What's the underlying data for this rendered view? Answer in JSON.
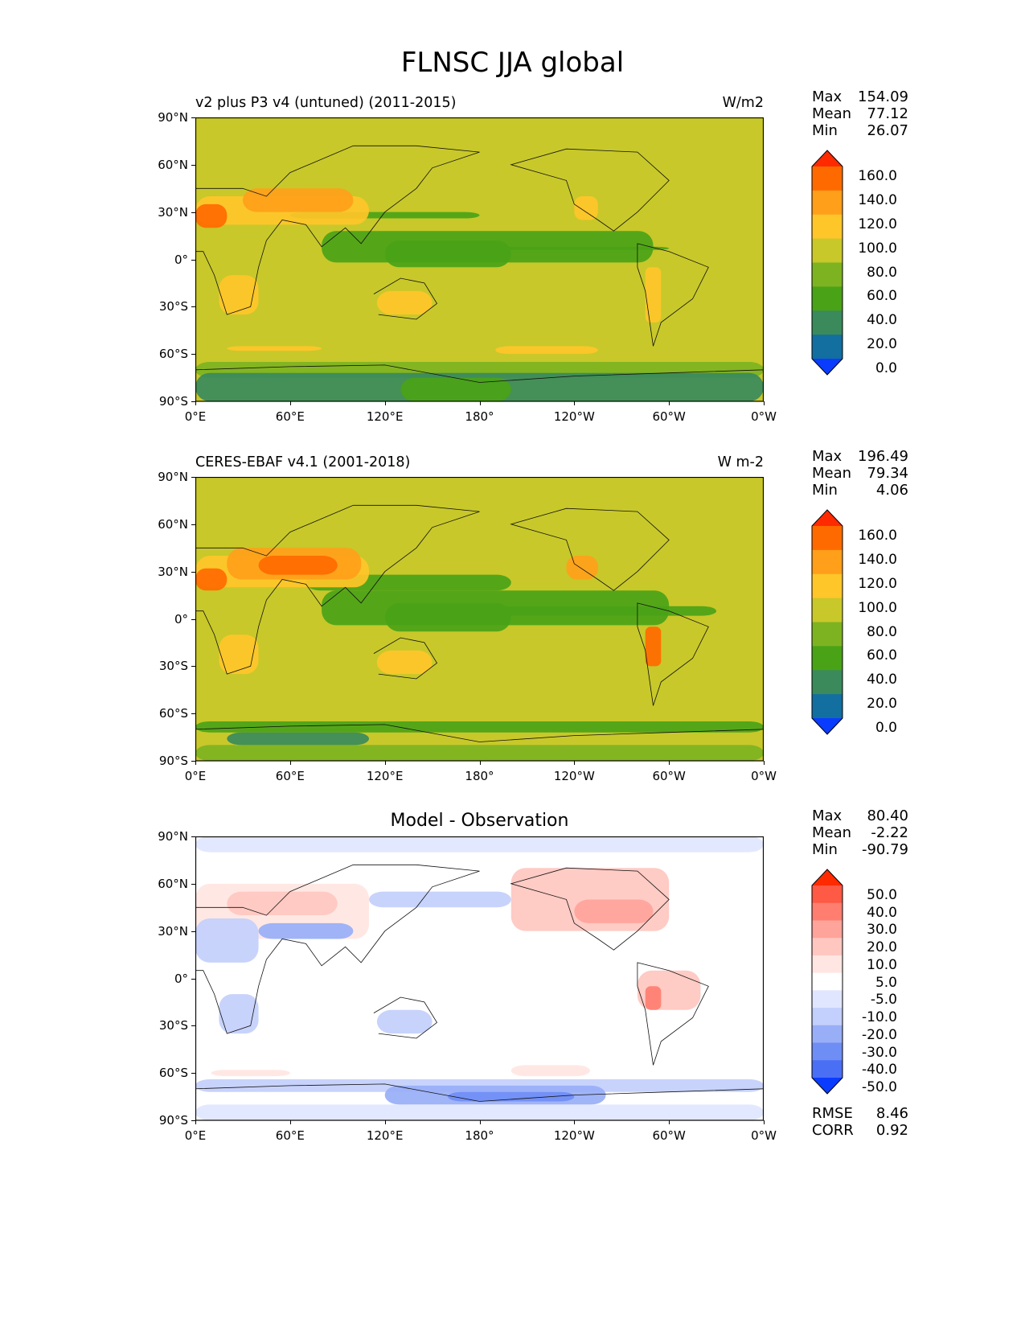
{
  "title": "FLNSC JJA global",
  "lat_ticks": [
    "90°N",
    "60°N",
    "30°N",
    "0°",
    "30°S",
    "60°S",
    "90°S"
  ],
  "lon_ticks": [
    "0°E",
    "60°E",
    "120°E",
    "180°",
    "120°W",
    "60°W",
    "0°W"
  ],
  "stat_labels": {
    "max": "Max",
    "mean": "Mean",
    "min": "Min",
    "rmse": "RMSE",
    "corr": "CORR"
  },
  "panels": [
    {
      "id": "model",
      "left_title": "v2 plus P3 v4 (untuned) (2011-2015)",
      "center_title": "",
      "units": "W/m2",
      "stats": {
        "max": "154.09",
        "mean": "77.12",
        "min": "26.07"
      },
      "colorbar": {
        "levels": [
          "160.0",
          "140.0",
          "120.0",
          "100.0",
          "80.0",
          "60.0",
          "40.0",
          "20.0",
          "0.0"
        ],
        "colors": [
          "#ff2a00",
          "#ff6a00",
          "#ff9f1a",
          "#ffc629",
          "#c8c82a",
          "#7db321",
          "#4aa317",
          "#3a8a5c",
          "#126fa0",
          "#0a3cff"
        ]
      }
    },
    {
      "id": "obs",
      "left_title": "CERES-EBAF v4.1 (2001-2018)",
      "center_title": "",
      "units": "W m-2",
      "stats": {
        "max": "196.49",
        "mean": "79.34",
        "min": "4.06"
      },
      "colorbar": {
        "levels": [
          "160.0",
          "140.0",
          "120.0",
          "100.0",
          "80.0",
          "60.0",
          "40.0",
          "20.0",
          "0.0"
        ],
        "colors": [
          "#ff2a00",
          "#ff6a00",
          "#ff9f1a",
          "#ffc629",
          "#c8c82a",
          "#7db321",
          "#4aa317",
          "#3a8a5c",
          "#126fa0",
          "#0a3cff"
        ]
      }
    },
    {
      "id": "diff",
      "left_title": "",
      "center_title": "Model - Observation",
      "units": "",
      "stats": {
        "max": "80.40",
        "mean": "-2.22",
        "min": "-90.79"
      },
      "extra_stats": {
        "rmse": "8.46",
        "corr": "0.92"
      },
      "colorbar": {
        "levels": [
          "50.0",
          "40.0",
          "30.0",
          "20.0",
          "10.0",
          "5.0",
          "-5.0",
          "-10.0",
          "-20.0",
          "-30.0",
          "-40.0",
          "-50.0"
        ],
        "colors": [
          "#ff2a00",
          "#ff5a45",
          "#ff7e70",
          "#ffa49a",
          "#ffc7c0",
          "#ffe6e2",
          "#ffffff",
          "#e0e6ff",
          "#c3cffc",
          "#98aef7",
          "#6f8ef5",
          "#4a6ff5",
          "#0a3cff"
        ]
      }
    }
  ]
}
